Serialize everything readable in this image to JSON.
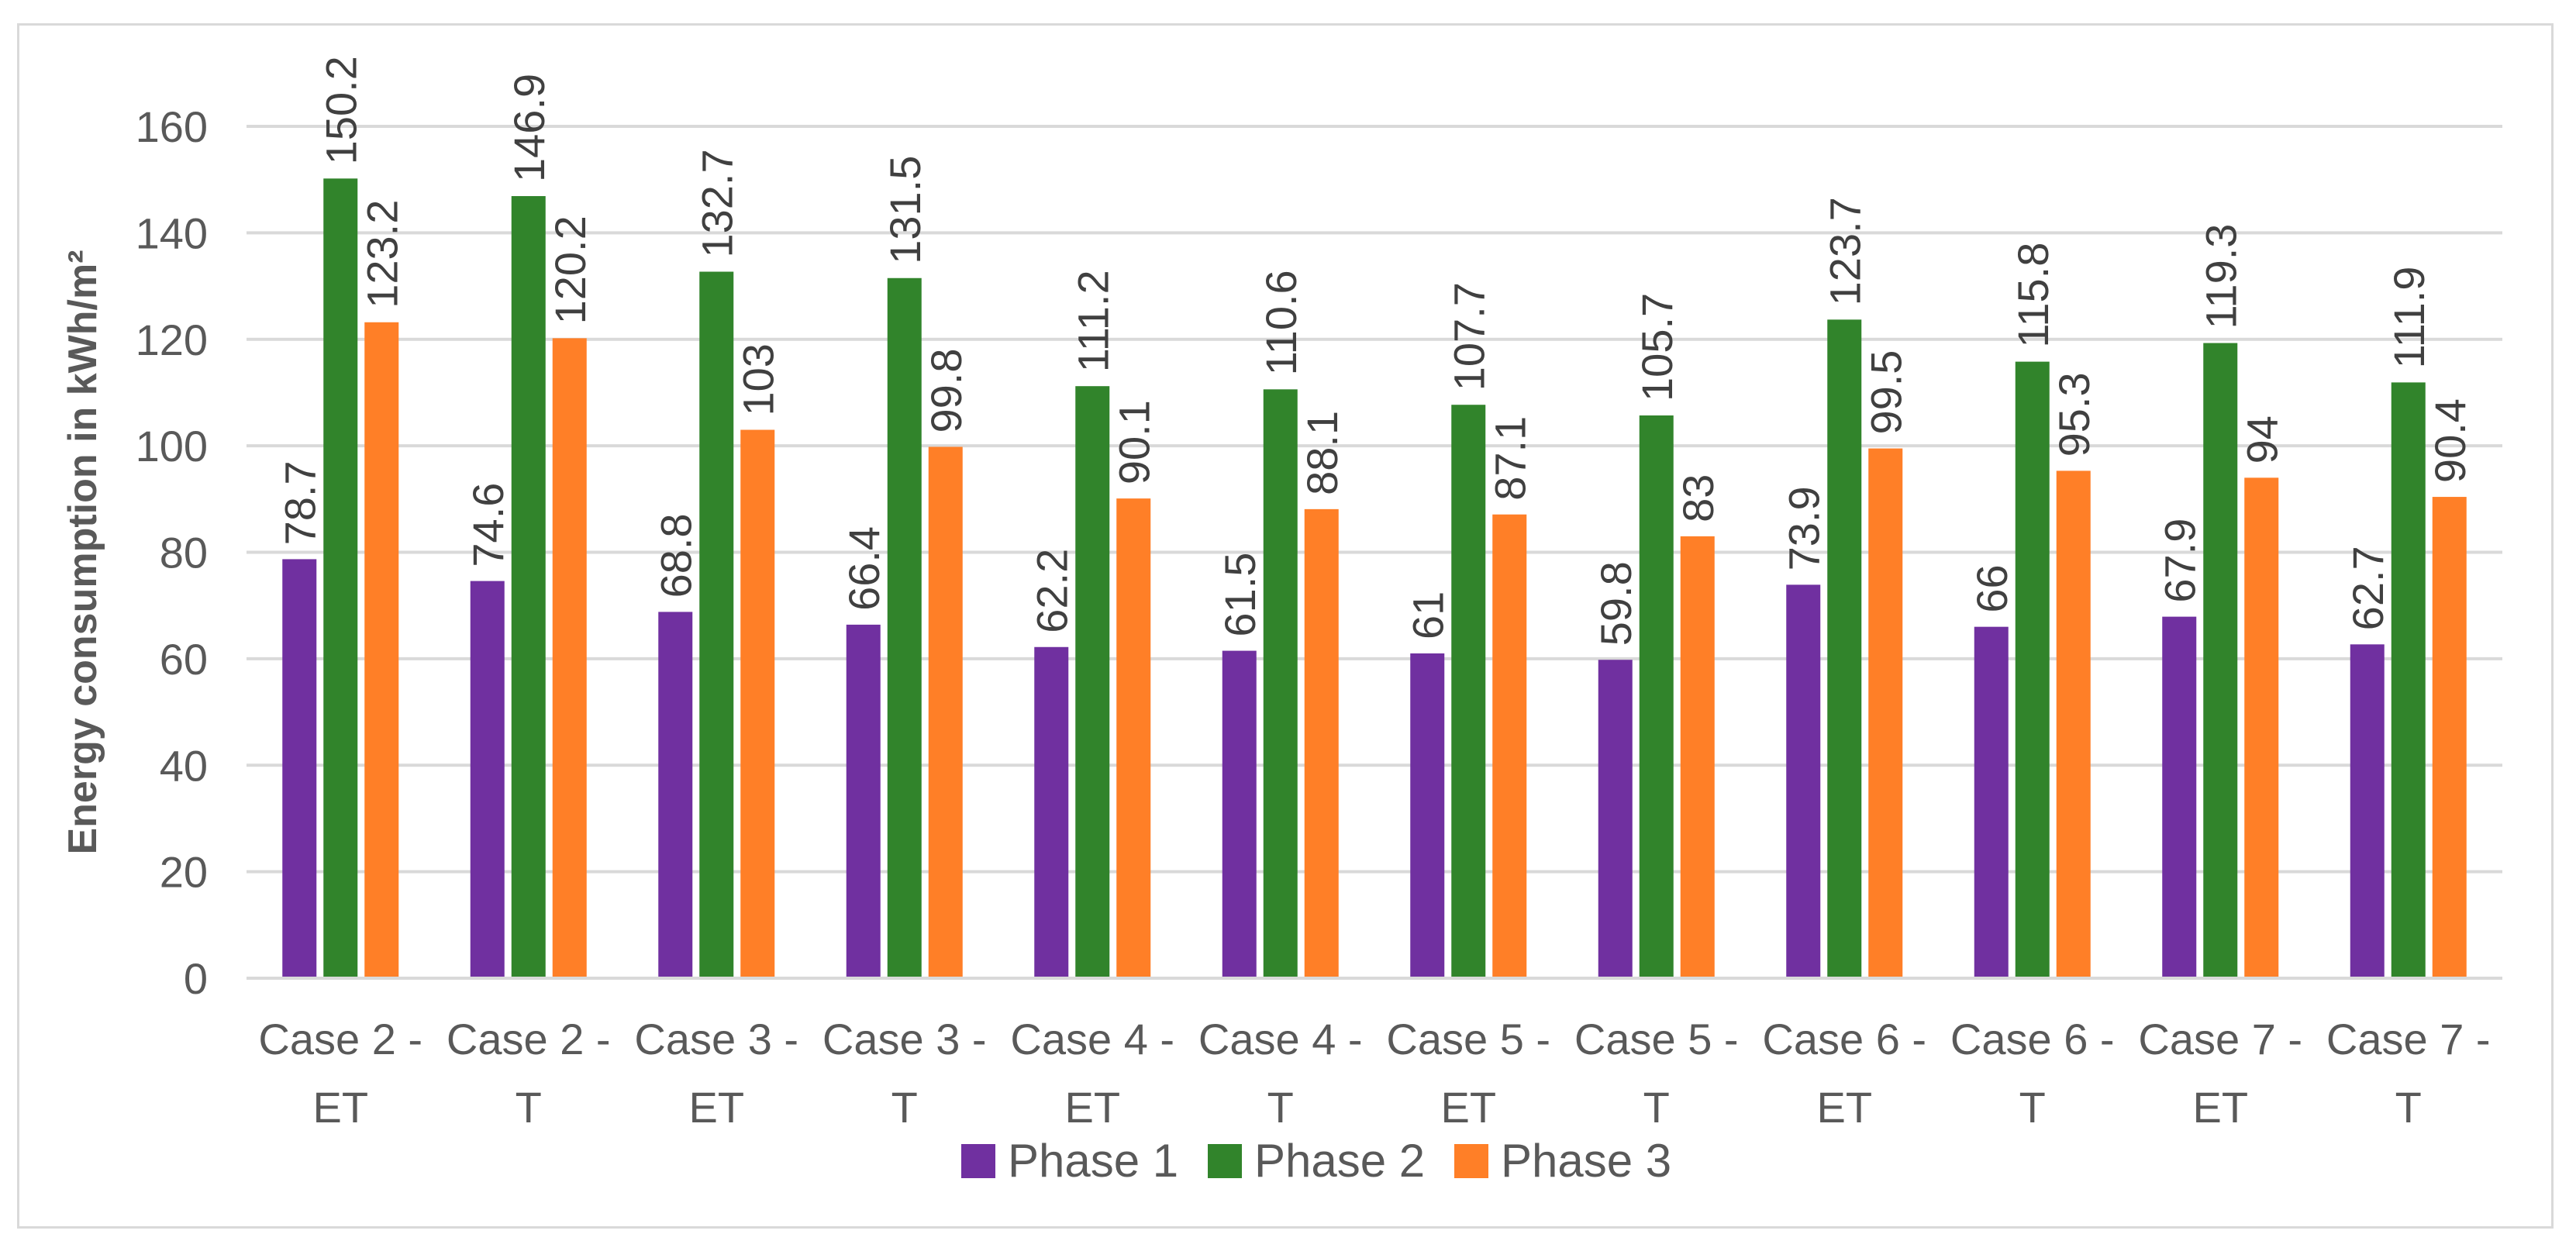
{
  "chart_data": {
    "type": "bar",
    "title": "",
    "xlabel": "",
    "ylabel": "Energy consumption in kWh/m²",
    "ylim": [
      0,
      160
    ],
    "yticks": [
      0,
      20,
      40,
      60,
      80,
      100,
      120,
      140,
      160
    ],
    "grid": true,
    "legend_position": "bottom",
    "categories": [
      [
        "Case 2 -",
        "ET"
      ],
      [
        "Case 2 -",
        "T"
      ],
      [
        "Case 3 -",
        "ET"
      ],
      [
        "Case 3 -",
        "T"
      ],
      [
        "Case 4 -",
        "ET"
      ],
      [
        "Case 4 -",
        "T"
      ],
      [
        "Case 5 -",
        "ET"
      ],
      [
        "Case 5 -",
        "T"
      ],
      [
        "Case 6 -",
        "ET"
      ],
      [
        "Case 6 -",
        "T"
      ],
      [
        "Case 7 -",
        "ET"
      ],
      [
        "Case 7 -",
        "T"
      ]
    ],
    "series": [
      {
        "name": "Phase 1",
        "color": "#7030a0",
        "values": [
          78.7,
          74.6,
          68.8,
          66.4,
          62.2,
          61.5,
          61,
          59.8,
          73.9,
          66,
          67.9,
          62.7
        ]
      },
      {
        "name": "Phase 2",
        "color": "#31842b",
        "values": [
          150.2,
          146.9,
          132.7,
          131.5,
          111.2,
          110.6,
          107.7,
          105.7,
          123.7,
          115.8,
          119.3,
          111.9
        ]
      },
      {
        "name": "Phase 3",
        "color": "#ff7f27",
        "values": [
          123.2,
          120.2,
          103,
          99.8,
          90.1,
          88.1,
          87.1,
          83,
          99.5,
          95.3,
          94,
          90.4
        ]
      }
    ]
  }
}
